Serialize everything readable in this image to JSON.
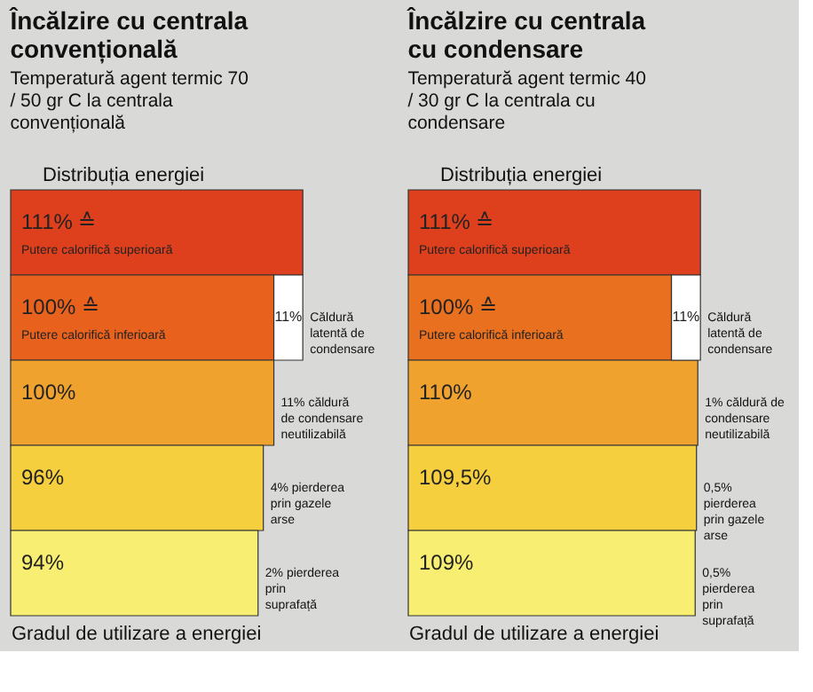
{
  "chart_data": [
    {
      "type": "bar",
      "orientation": "horizontal",
      "stacked": true,
      "title": "Încălzire cu centrala convențională",
      "subtitle": "Temperatură agent termic 70 / 50 gr C la centrala convențională",
      "xlabel": "Gradul de utilizare a energiei",
      "categories": [
        "Putere calorifică superioară",
        "Putere calorifică inferioară",
        null,
        null,
        null
      ],
      "series": [
        {
          "values": [
            111,
            100,
            100,
            96,
            94
          ],
          "colors": [
            "#de3f1c",
            "#e8621e",
            "#f0a22e",
            "#f6cf3e",
            "#f7ee72"
          ],
          "value_labels": [
            "111% ≙",
            "100% ≙",
            "100%",
            "96%",
            "94%"
          ]
        },
        {
          "values": [
            null,
            11,
            null,
            null,
            null
          ],
          "color": "#ffffff",
          "value_labels": [
            null,
            "11%",
            null,
            null,
            null
          ]
        }
      ],
      "annotations": [
        "Distribuția energiei",
        "Căldură latentă de condensare",
        "11% căldură de condensare neutilizabilă",
        "4% pierderea prin gazele arse",
        "2% pierderea prin suprafață"
      ]
    },
    {
      "type": "bar",
      "orientation": "horizontal",
      "stacked": true,
      "title": "Încălzire cu centrala cu condensare",
      "subtitle": "Temperatură agent termic 40 / 30 gr C la centrala cu condensare",
      "xlabel": "Gradul de utilizare a energiei",
      "categories": [
        "Putere calorifică superioară",
        "Putere calorifică inferioară",
        null,
        null,
        null
      ],
      "series": [
        {
          "values": [
            111,
            100,
            110,
            109.5,
            109
          ],
          "colors": [
            "#de3f1c",
            "#e8701e",
            "#f0a22e",
            "#f6cf3e",
            "#f7ee72"
          ],
          "value_labels": [
            "111% ≙",
            "100% ≙",
            "110%",
            "109,5%",
            "109%"
          ]
        },
        {
          "values": [
            null,
            11,
            null,
            null,
            null
          ],
          "color": "#ffffff",
          "value_labels": [
            null,
            "11%",
            null,
            null,
            null
          ]
        }
      ],
      "annotations": [
        "Distribuția energiei",
        "Căldură latentă de condensare",
        "1% căldură de condensare neutilizabilă",
        "0,5% pierderea prin gazele arse",
        "0,5% pierderea prin suprafață"
      ]
    }
  ]
}
